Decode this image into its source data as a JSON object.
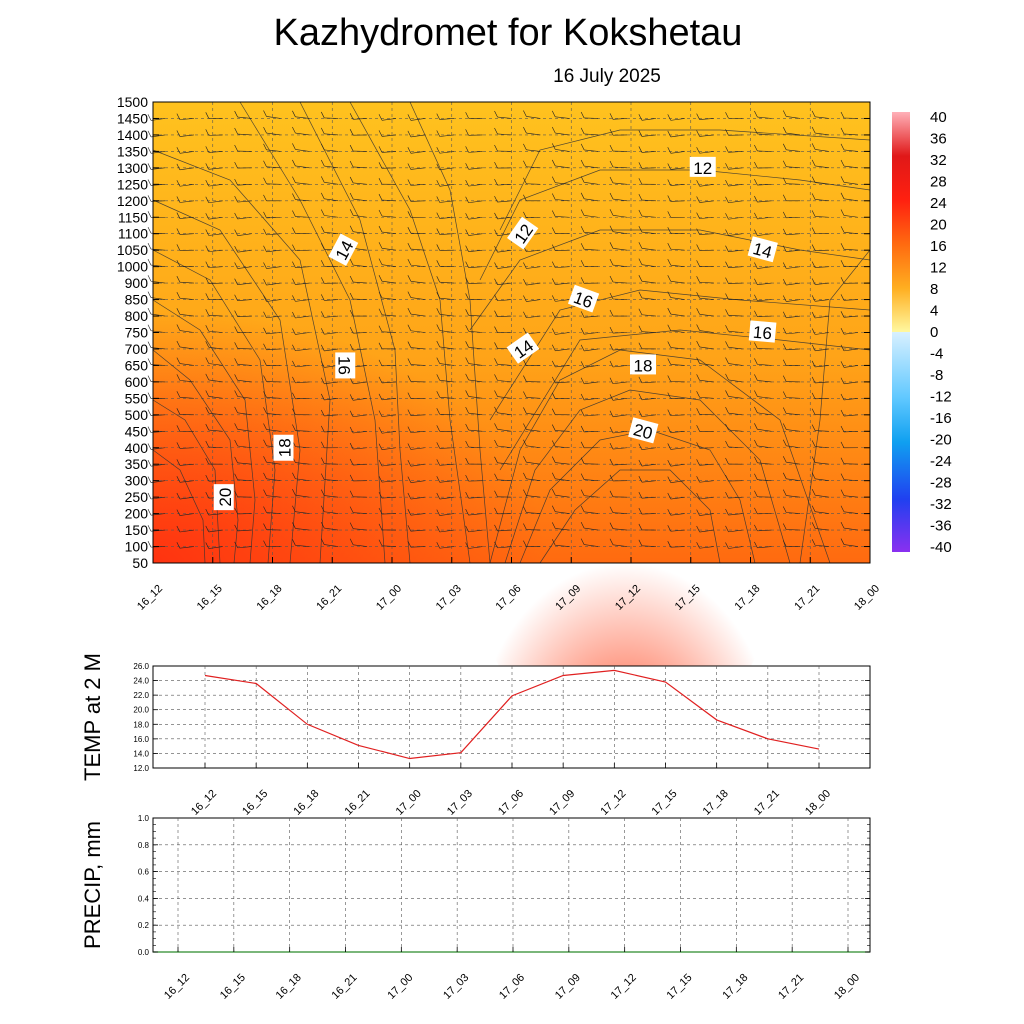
{
  "title": "Kazhydromet  for Kokshetau",
  "subtitle": "16 July 2025",
  "chart_data": [
    {
      "type": "heatmap",
      "title": "",
      "x_ticks": [
        "16_12",
        "16_15",
        "16_18",
        "16_21",
        "17_00",
        "17_03",
        "17_06",
        "17_09",
        "17_12",
        "17_15",
        "17_18",
        "17_21",
        "18_00"
      ],
      "y_ticks": [
        50,
        100,
        150,
        200,
        250,
        300,
        350,
        400,
        450,
        500,
        550,
        600,
        650,
        700,
        750,
        800,
        850,
        900,
        1000,
        1050,
        1100,
        1150,
        1200,
        1250,
        1300,
        1350,
        1400,
        1450,
        1500
      ],
      "colorbar_ticks": [
        40,
        36,
        32,
        28,
        24,
        20,
        16,
        12,
        8,
        4,
        0,
        -4,
        -8,
        -12,
        -16,
        -20,
        -24,
        -28,
        -32,
        -36,
        -40
      ],
      "colors": {
        "warm_low": "#ff6010",
        "warm_high": "#ffc820",
        "contour": "#333333"
      },
      "contour_labels": [
        {
          "text": "14",
          "x": "16_21",
          "y": 1050,
          "angle": -62
        },
        {
          "text": "16",
          "x": "16_21",
          "y": 650,
          "angle": 90
        },
        {
          "text": "18",
          "x": "16_18",
          "y": 400,
          "angle": -90
        },
        {
          "text": "20",
          "x": "16_15",
          "y": 250,
          "angle": -90
        },
        {
          "text": "12",
          "x": "17_06",
          "y": 1100,
          "angle": -55
        },
        {
          "text": "14",
          "x": "17_06",
          "y": 700,
          "angle": -35
        },
        {
          "text": "16",
          "x": "17_09",
          "y": 850,
          "angle": 20
        },
        {
          "text": "18",
          "x": "17_12",
          "y": 650,
          "angle": 0
        },
        {
          "text": "20",
          "x": "17_12",
          "y": 450,
          "angle": 15
        },
        {
          "text": "12",
          "x": "17_15",
          "y": 1300,
          "angle": 0
        },
        {
          "text": "14",
          "x": "17_18",
          "y": 1050,
          "angle": 15
        },
        {
          "text": "16",
          "x": "17_18",
          "y": 750,
          "angle": 5
        }
      ]
    },
    {
      "type": "line",
      "ylabel": "TEMP at 2 M",
      "ylim": [
        12.0,
        26.0
      ],
      "y_ticks": [
        "12.0",
        "14.0",
        "16.0",
        "18.0",
        "20.0",
        "22.0",
        "24.0",
        "26.0"
      ],
      "x": [
        "16_12",
        "16_15",
        "16_18",
        "16_21",
        "17_00",
        "17_03",
        "17_06",
        "17_09",
        "17_12",
        "17_15",
        "17_18",
        "17_21",
        "18_00"
      ],
      "series": [
        {
          "values": [
            24.7,
            23.6,
            18.0,
            15.1,
            13.3,
            14.1,
            21.9,
            24.7,
            25.4,
            23.8,
            18.6,
            16.0,
            14.6
          ],
          "color": "#e02020"
        }
      ]
    },
    {
      "type": "line",
      "ylabel": "PRECIP, mm",
      "ylim": [
        0.0,
        1.0
      ],
      "y_ticks": [
        "0.0",
        "0.2",
        "0.4",
        "0.6",
        "0.8",
        "1.0"
      ],
      "x": [
        "16_12",
        "16_15",
        "16_18",
        "16_21",
        "17_00",
        "17_03",
        "17_06",
        "17_09",
        "17_12",
        "17_15",
        "17_18",
        "17_21",
        "18_00"
      ],
      "series": [
        {
          "values": [
            0,
            0,
            0,
            0,
            0,
            0,
            0,
            0,
            0,
            0,
            0,
            0,
            0
          ],
          "color": "#2a8a2a"
        }
      ]
    }
  ]
}
